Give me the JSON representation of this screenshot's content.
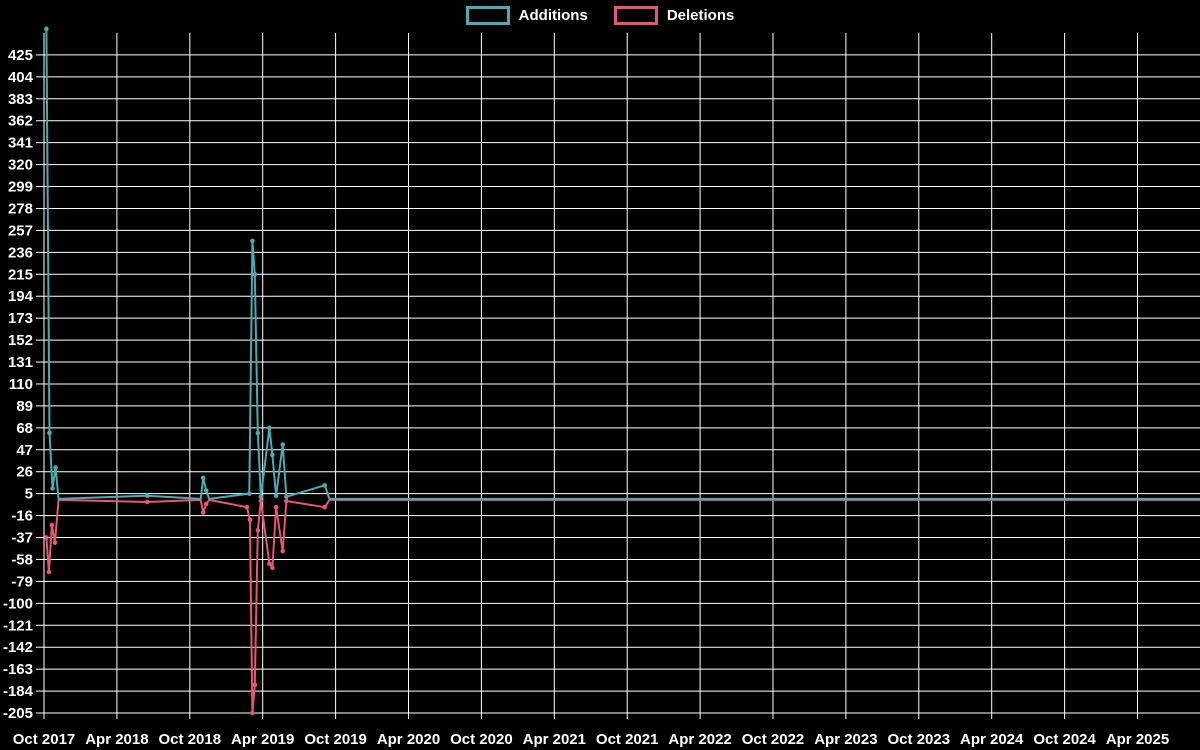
{
  "page": {
    "background": "#000000"
  },
  "chart_data": {
    "type": "line",
    "title": "",
    "grid": true,
    "legend_position": "top",
    "x_axis": {
      "unit": "months_since_oct_2017",
      "tick_interval_months": 6,
      "labels": [
        "Oct 2017",
        "Apr 2018",
        "Oct 2018",
        "Apr 2019",
        "Oct 2019",
        "Apr 2020",
        "Oct 2020",
        "Apr 2021",
        "Oct 2021",
        "Apr 2022",
        "Oct 2022",
        "Apr 2023",
        "Oct 2023",
        "Apr 2024",
        "Oct 2024",
        "Apr 2025"
      ]
    },
    "y_axis": {
      "ticks": [
        425,
        404,
        383,
        362,
        341,
        320,
        299,
        278,
        257,
        236,
        215,
        194,
        173,
        152,
        131,
        110,
        89,
        68,
        47,
        26,
        5,
        -16,
        -37,
        -58,
        -79,
        -100,
        -121,
        -142,
        -163,
        -184,
        -205
      ],
      "max_plot": 446,
      "min_plot": -205
    },
    "series": [
      {
        "name": "Additions",
        "color": "#49acb2",
        "points": [
          [
            0.2,
            450
          ],
          [
            0.45,
            63
          ],
          [
            0.7,
            10
          ],
          [
            0.95,
            30
          ],
          [
            1.2,
            0
          ],
          [
            8.5,
            3
          ],
          [
            12.9,
            0
          ],
          [
            13.1,
            20
          ],
          [
            13.35,
            8
          ],
          [
            13.6,
            0
          ],
          [
            16.9,
            5
          ],
          [
            17.15,
            247
          ],
          [
            17.35,
            215
          ],
          [
            17.6,
            63
          ],
          [
            17.85,
            2
          ],
          [
            18.55,
            68
          ],
          [
            18.8,
            42
          ],
          [
            19.1,
            3
          ],
          [
            19.65,
            52
          ],
          [
            19.95,
            2
          ],
          [
            23.1,
            13
          ],
          [
            23.5,
            0
          ],
          [
            95.6,
            0
          ]
        ]
      },
      {
        "name": "Deletions",
        "color": "#ec5476",
        "points": [
          [
            0.2,
            -37
          ],
          [
            0.4,
            -70
          ],
          [
            0.65,
            -25
          ],
          [
            0.9,
            -42
          ],
          [
            1.2,
            -1
          ],
          [
            8.5,
            -3
          ],
          [
            12.9,
            -1
          ],
          [
            13.1,
            -13
          ],
          [
            13.35,
            -5
          ],
          [
            13.6,
            -1
          ],
          [
            16.7,
            -8
          ],
          [
            16.95,
            -20
          ],
          [
            17.15,
            -205
          ],
          [
            17.35,
            -178
          ],
          [
            17.6,
            -30
          ],
          [
            17.85,
            -2
          ],
          [
            18.55,
            -62
          ],
          [
            18.8,
            -66
          ],
          [
            19.1,
            -8
          ],
          [
            19.65,
            -50
          ],
          [
            19.95,
            -2
          ],
          [
            23.1,
            -8
          ],
          [
            23.5,
            -1
          ],
          [
            95.6,
            -1
          ]
        ]
      }
    ]
  }
}
